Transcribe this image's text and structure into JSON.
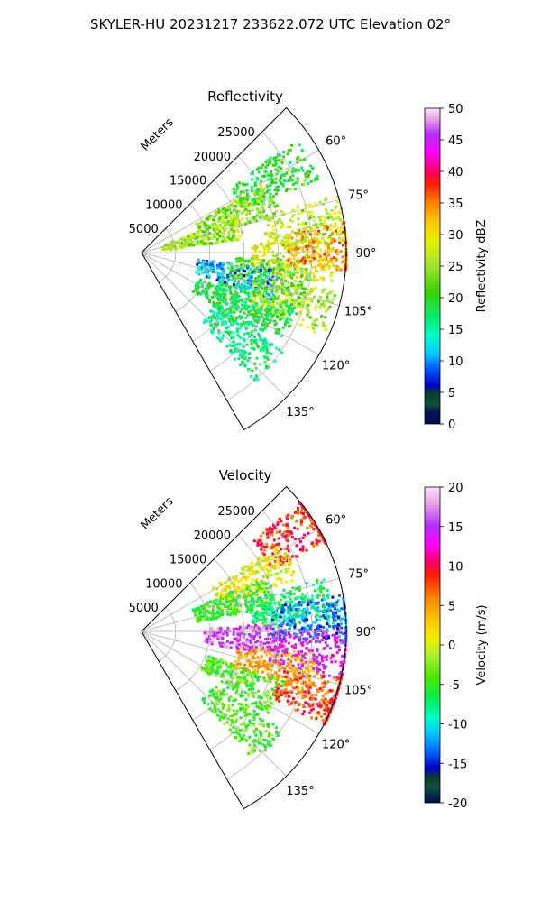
{
  "figure_title": "SKYLER-HU  20231217  233622.072 UTC Elevation 02°",
  "chart_data": [
    {
      "type": "heatmap",
      "subtype": "polar-sector (PPI)",
      "title": "Reflectivity",
      "radial_label": "Meters",
      "radial_ticks": [
        "5000",
        "10000",
        "15000",
        "20000",
        "25000"
      ],
      "radial_tick_values": [
        5000,
        10000,
        15000,
        20000,
        25000
      ],
      "radial_range": [
        0,
        30000
      ],
      "azimuth_range_deg": [
        45,
        150
      ],
      "azimuth_ticks": [
        "60°",
        "75°",
        "90°",
        "105°",
        "120°",
        "135°"
      ],
      "azimuth_tick_values": [
        60,
        75,
        90,
        105,
        120,
        135
      ],
      "grid": true,
      "colorbar": {
        "label": "Reflectivity dBZ",
        "range": [
          0,
          50
        ],
        "ticks": [
          "0",
          "5",
          "10",
          "15",
          "20",
          "25",
          "30",
          "35",
          "40",
          "45",
          "50"
        ],
        "tick_values": [
          0,
          5,
          10,
          15,
          20,
          25,
          30,
          35,
          40,
          45,
          50
        ]
      },
      "features": [
        {
          "az": 60,
          "r": 22000,
          "value": 22
        },
        {
          "az": 67,
          "r": 15000,
          "value": 26
        },
        {
          "az": 75,
          "r": 9000,
          "value": 27
        },
        {
          "az": 80,
          "r": 24000,
          "value": 28
        },
        {
          "az": 88,
          "r": 27000,
          "value": 36
        },
        {
          "az": 92,
          "r": 22000,
          "value": 30
        },
        {
          "az": 99,
          "r": 19000,
          "value": 24
        },
        {
          "az": 103,
          "r": 14000,
          "value": 12
        },
        {
          "az": 108,
          "r": 23000,
          "value": 28
        },
        {
          "az": 114,
          "r": 18000,
          "value": 20
        },
        {
          "az": 120,
          "r": 15000,
          "value": 20
        },
        {
          "az": 132,
          "r": 19000,
          "value": 18
        }
      ]
    },
    {
      "type": "heatmap",
      "subtype": "polar-sector (PPI)",
      "title": "Velocity",
      "radial_label": "Meters",
      "radial_ticks": [
        "5000",
        "10000",
        "15000",
        "20000",
        "25000"
      ],
      "radial_tick_values": [
        5000,
        10000,
        15000,
        20000,
        25000
      ],
      "radial_range": [
        0,
        30000
      ],
      "azimuth_range_deg": [
        45,
        150
      ],
      "azimuth_ticks": [
        "60°",
        "75°",
        "90°",
        "105°",
        "120°",
        "135°"
      ],
      "azimuth_tick_values": [
        60,
        75,
        90,
        105,
        120,
        135
      ],
      "grid": true,
      "colorbar": {
        "label": "Velocity (m/s)",
        "range": [
          -20,
          20
        ],
        "ticks": [
          "-20",
          "-15",
          "-10",
          "-5",
          "0",
          "5",
          "10",
          "15",
          "20"
        ],
        "tick_values": [
          -20,
          -15,
          -10,
          -5,
          0,
          5,
          10,
          15,
          20
        ]
      },
      "features": [
        {
          "az": 57,
          "r": 27000,
          "value": 10
        },
        {
          "az": 64,
          "r": 18000,
          "value": 2
        },
        {
          "az": 72,
          "r": 14000,
          "value": -4
        },
        {
          "az": 80,
          "r": 22000,
          "value": -6
        },
        {
          "az": 86,
          "r": 25000,
          "value": -12
        },
        {
          "az": 93,
          "r": 15000,
          "value": 17
        },
        {
          "az": 96,
          "r": 25000,
          "value": 15
        },
        {
          "az": 104,
          "r": 20000,
          "value": 6
        },
        {
          "az": 110,
          "r": 27000,
          "value": 9
        },
        {
          "az": 116,
          "r": 16000,
          "value": -3
        },
        {
          "az": 132,
          "r": 19000,
          "value": -3
        }
      ]
    }
  ]
}
